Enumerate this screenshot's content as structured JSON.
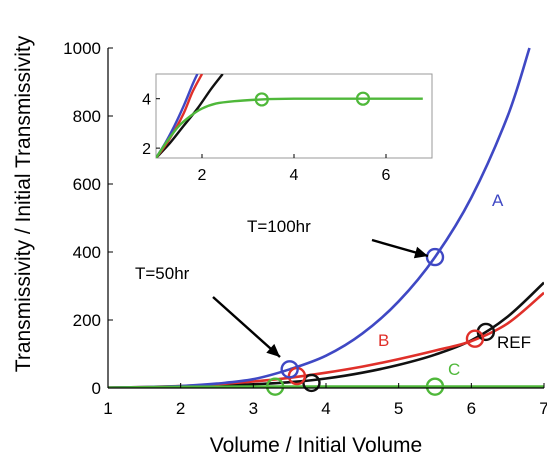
{
  "chart_data": {
    "type": "line",
    "xlabel": "Volume / Initial Volume",
    "ylabel": "Transmissivity / Initial Transmissivity",
    "xlim": [
      1,
      7
    ],
    "ylim": [
      0,
      1000
    ],
    "xticks": [
      1,
      2,
      3,
      4,
      5,
      6,
      7
    ],
    "yticks": [
      0,
      200,
      400,
      600,
      800,
      1000
    ],
    "colors": {
      "A": "#3f48c4",
      "B": "#e0302a",
      "REF": "#111111",
      "C": "#4fb83a"
    },
    "series": [
      {
        "name": "A",
        "x": [
          1,
          1.5,
          2,
          2.5,
          3,
          3.5,
          4,
          4.5,
          5,
          5.5,
          6,
          6.5,
          6.8
        ],
        "values": [
          1,
          3,
          6,
          13,
          26,
          55,
          95,
          160,
          255,
          385,
          560,
          800,
          1000
        ],
        "markers": [
          {
            "x": 3.5,
            "y": 55
          },
          {
            "x": 5.5,
            "y": 385
          }
        ]
      },
      {
        "name": "B",
        "x": [
          1,
          1.5,
          2,
          2.5,
          3,
          3.5,
          4,
          4.5,
          5,
          5.5,
          6,
          6.5,
          7
        ],
        "values": [
          1,
          3,
          6,
          11,
          19,
          30,
          45,
          63,
          85,
          110,
          138,
          190,
          280
        ],
        "markers": [
          {
            "x": 3.6,
            "y": 35
          },
          {
            "x": 6.05,
            "y": 145
          }
        ]
      },
      {
        "name": "REF",
        "x": [
          1,
          1.5,
          2,
          2.5,
          3,
          3.5,
          4,
          4.5,
          5,
          5.5,
          6,
          6.5,
          7
        ],
        "values": [
          1,
          2,
          4,
          7,
          11,
          17,
          28,
          45,
          68,
          98,
          140,
          210,
          310
        ],
        "markers": [
          {
            "x": 3.8,
            "y": 15
          },
          {
            "x": 6.2,
            "y": 165
          }
        ]
      },
      {
        "name": "C",
        "x": [
          1,
          2,
          3,
          4,
          5,
          6,
          7
        ],
        "values": [
          1,
          3.5,
          4,
          4,
          4,
          4,
          4
        ],
        "markers": [
          {
            "x": 3.3,
            "y": 4
          },
          {
            "x": 5.5,
            "y": 4
          }
        ]
      }
    ],
    "annotations": [
      {
        "text": "T=100hr",
        "x": 3.9,
        "y": 470
      },
      {
        "text": "T=50hr",
        "x": 2.3,
        "y": 330
      }
    ],
    "inset": {
      "xlim": [
        1,
        7
      ],
      "ylim": [
        1.6,
        5
      ],
      "xticks": [
        2,
        4,
        6
      ],
      "yticks": [
        2,
        4
      ],
      "series": [
        {
          "name": "A",
          "x": [
            1,
            1.2,
            1.4,
            1.6,
            1.8,
            1.9
          ],
          "values": [
            1.6,
            2.2,
            2.9,
            3.7,
            4.6,
            5
          ]
        },
        {
          "name": "B",
          "x": [
            1,
            1.2,
            1.4,
            1.6,
            1.8,
            2.0
          ],
          "values": [
            1.6,
            2.1,
            2.7,
            3.4,
            4.3,
            5
          ]
        },
        {
          "name": "REF",
          "x": [
            1,
            1.3,
            1.6,
            1.9,
            2.2,
            2.45
          ],
          "values": [
            1.6,
            2.2,
            2.9,
            3.6,
            4.4,
            5
          ]
        },
        {
          "name": "C",
          "x": [
            1,
            1.25,
            1.5,
            1.75,
            2,
            2.3,
            2.7,
            3.3,
            4,
            5.5,
            6.8
          ],
          "values": [
            1.6,
            2.3,
            2.9,
            3.3,
            3.6,
            3.8,
            3.9,
            3.97,
            4.0,
            4.0,
            4.0
          ],
          "markers": [
            {
              "x": 3.3,
              "y": 3.97
            },
            {
              "x": 5.5,
              "y": 4.0
            }
          ]
        }
      ]
    }
  }
}
